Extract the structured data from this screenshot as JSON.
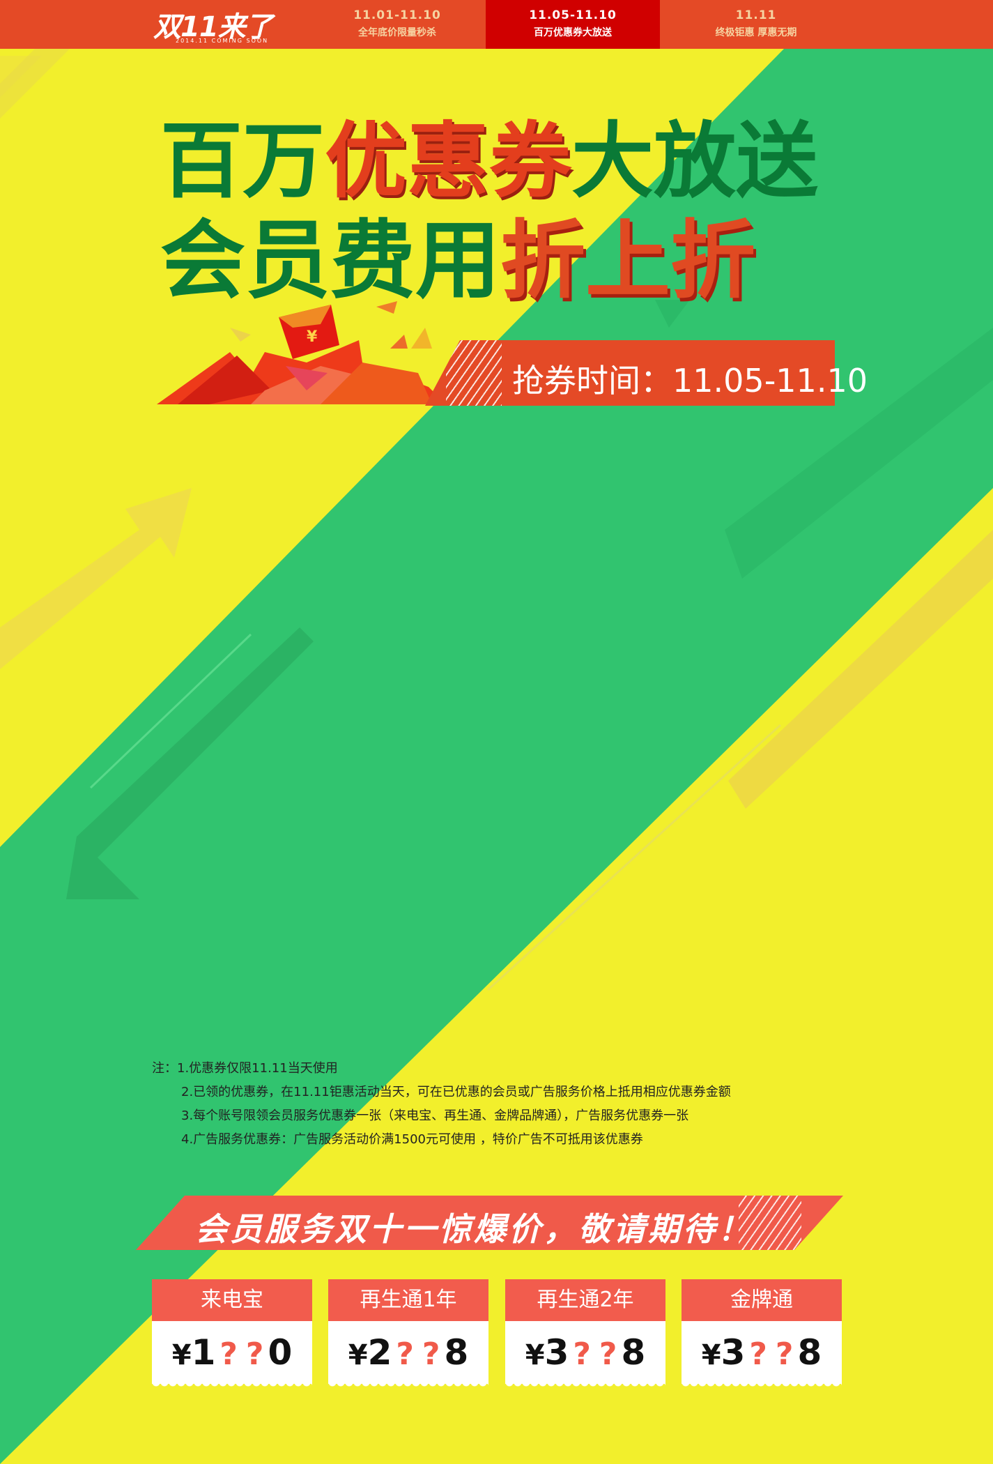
{
  "nav": {
    "logo_main": "双11来了",
    "logo_sub": "2014.11 COMING SOON",
    "tabs": [
      {
        "date": "11.01-11.10",
        "label": "全年底价限量秒杀",
        "active": false
      },
      {
        "date": "11.05-11.10",
        "label": "百万优惠券大放送",
        "active": true
      },
      {
        "date": "11.11",
        "label": "终极钜惠  厚惠无期",
        "active": false
      }
    ]
  },
  "hero": {
    "line1_part1": "百万",
    "line1_part2": "优惠券",
    "line1_part3": "大放送",
    "line2_part1": "会员费用",
    "line2_part2": "折上折",
    "ribbon_text": "抢券时间：11.05-11.10"
  },
  "notes": [
    "注：1.优惠券仅限11.11当天使用",
    "2.已领的优惠券，在11.11钜惠活动当天，可在已优惠的会员或广告服务价格上抵用相应优惠券金额",
    "3.每个账号限领会员服务优惠券一张（来电宝、再生通、金牌品牌通），广告服务优惠券一张",
    "4.广告服务优惠券：广告服务活动价满1500元可使用 ，特价广告不可抵用该优惠券"
  ],
  "banner": {
    "text": "会员服务双十一惊爆价，敬请期待！"
  },
  "cards": [
    {
      "name": "来电宝",
      "currency": "¥",
      "first": "1",
      "mask1": "?",
      "mask2": "?",
      "last": "0"
    },
    {
      "name": "再生通1年",
      "currency": "¥",
      "first": "2",
      "mask1": "?",
      "mask2": "?",
      "last": "8"
    },
    {
      "name": "再生通2年",
      "currency": "¥",
      "first": "3",
      "mask1": "?",
      "mask2": "?",
      "last": "8"
    },
    {
      "name": "金牌通",
      "currency": "¥",
      "first": "3",
      "mask1": "?",
      "mask2": "?",
      "last": "8"
    }
  ],
  "colors": {
    "yellow": "#f2ef2c",
    "green": "#31c46f",
    "red": "#e44a26",
    "coral": "#f25c4d",
    "dark_green": "#0a7a36"
  }
}
